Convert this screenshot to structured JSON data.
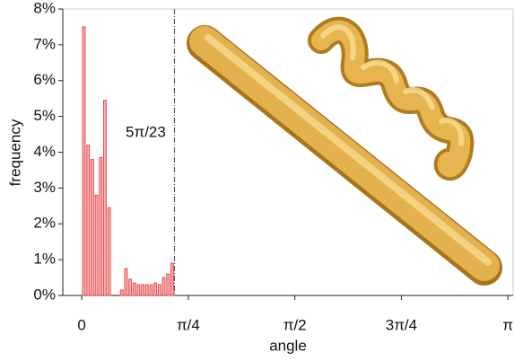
{
  "chart_data": {
    "type": "histogram",
    "x_label": "angle",
    "y_label": "frequency",
    "bins": [
      0,
      0.031,
      0.062,
      0.093,
      0.124,
      0.155,
      0.186,
      0.217,
      0.248,
      0.279,
      0.31,
      0.341,
      0.372,
      0.403,
      0.434,
      0.465,
      0.496,
      0.527,
      0.558,
      0.589,
      0.62,
      0.651,
      0.682
    ],
    "values": [
      7.5,
      4.2,
      3.8,
      2.8,
      3.85,
      5.45,
      2.45,
      0,
      0,
      0.15,
      0.75,
      0.45,
      0.35,
      0.3,
      0.3,
      0.3,
      0.3,
      0.35,
      0.3,
      0.5,
      0.6,
      0.9
    ],
    "color": "#e8484a",
    "xlim": [
      -0.14,
      3.18
    ],
    "ylim": [
      0,
      8
    ],
    "xticks": [
      0,
      {
        "value": 0.7854,
        "label": "π/4"
      },
      {
        "value": 1.5708,
        "label": "π/2"
      },
      {
        "value": 2.3562,
        "label": "3π/4"
      },
      {
        "value": 3.1416,
        "label": "π"
      }
    ],
    "yticks": [
      {
        "value": 0,
        "label": "0%"
      },
      {
        "value": 1,
        "label": "1%"
      },
      {
        "value": 2,
        "label": "2%"
      },
      {
        "value": 3,
        "label": "3%"
      },
      {
        "value": 4,
        "label": "4%"
      },
      {
        "value": 5,
        "label": "5%"
      },
      {
        "value": 6,
        "label": "6%"
      },
      {
        "value": 7,
        "label": "7%"
      },
      {
        "value": 8,
        "label": "8%"
      }
    ],
    "vline": {
      "value": 0.683,
      "label": "5π/23"
    }
  }
}
